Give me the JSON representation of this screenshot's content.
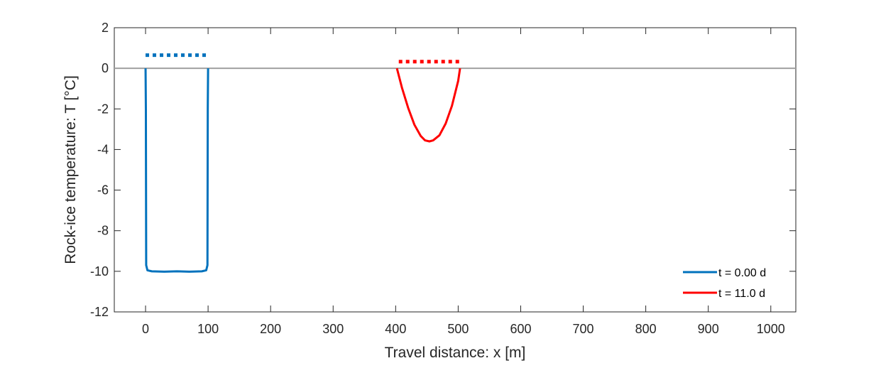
{
  "chart_data": {
    "type": "line",
    "xlabel": "Travel distance: x [m]",
    "ylabel": "Rock-ice temperature:  T [°C]",
    "xlim": [
      -50,
      1040
    ],
    "ylim": [
      -12,
      2
    ],
    "x_ticks": [
      0,
      100,
      200,
      300,
      400,
      500,
      600,
      700,
      800,
      900,
      1000
    ],
    "y_ticks": [
      2,
      0,
      -2,
      -4,
      -6,
      -8,
      -10,
      -12
    ],
    "grid": false,
    "legend_position": "bottom-right",
    "reference_line": {
      "y": 0,
      "color": "#a0a0a0"
    },
    "series": [
      {
        "name": "t = 0.00 d",
        "color": "#0072bd",
        "points": [
          [
            0,
            0
          ],
          [
            0.5,
            -2
          ],
          [
            1,
            -9.7
          ],
          [
            3,
            -9.95
          ],
          [
            10,
            -10.0
          ],
          [
            30,
            -10.02
          ],
          [
            50,
            -10.0
          ],
          [
            70,
            -10.02
          ],
          [
            90,
            -10.0
          ],
          [
            97,
            -9.95
          ],
          [
            99,
            -9.7
          ],
          [
            99.5,
            -2
          ],
          [
            100,
            0
          ]
        ]
      },
      {
        "name": "t = 11.0 d",
        "color": "#ff0000",
        "points": [
          [
            402,
            0
          ],
          [
            410,
            -0.95
          ],
          [
            420,
            -1.95
          ],
          [
            430,
            -2.78
          ],
          [
            440,
            -3.33
          ],
          [
            447,
            -3.55
          ],
          [
            454,
            -3.6
          ],
          [
            460,
            -3.55
          ],
          [
            470,
            -3.3
          ],
          [
            480,
            -2.72
          ],
          [
            490,
            -1.85
          ],
          [
            500,
            -0.62
          ],
          [
            503,
            0
          ]
        ]
      }
    ],
    "dotted_markers": [
      {
        "color": "#0072bd",
        "x_start": 0,
        "x_end": 100,
        "y": 0.65
      },
      {
        "color": "#ff0000",
        "x_start": 405,
        "x_end": 505,
        "y": 0.33
      }
    ]
  }
}
